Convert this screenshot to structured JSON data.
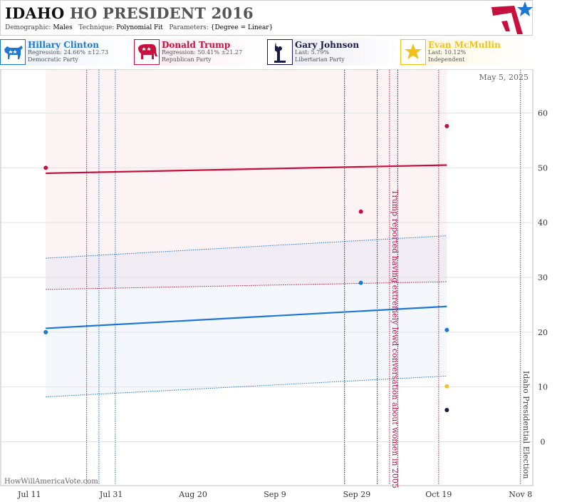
{
  "header": {
    "state": "IDAHO",
    "title_rest": "HO PRESIDENT 2016",
    "demographic_label": "Demographic:",
    "demographic_value": "Males",
    "technique_label": "Technique:",
    "technique_value": "Polynomial Fit",
    "parameters_label": "Parameters:",
    "parameters_value": "{Degree = Linear}"
  },
  "candidates": [
    {
      "name": "Hillary Clinton",
      "line1": "Regression: 24.66% ±12.73",
      "line2": "Democratic Party",
      "color": "#1f77d4",
      "icon": "donkey-icon"
    },
    {
      "name": "Donald Trump",
      "line1": "Regression: 50.41% ±21.27",
      "line2": "Republican Party",
      "color": "#c8103e",
      "icon": "elephant-icon"
    },
    {
      "name": "Gary Johnson",
      "line1": "Last: 5.79%",
      "line2": "Libertarian Party",
      "color": "#1a1a4a",
      "icon": "liberty-statue-icon"
    },
    {
      "name": "Evan McMullin",
      "line1": "Last: 10.12%",
      "line2": "Independent",
      "color": "#f2c21b",
      "icon": "star-icon"
    }
  ],
  "chart_data": {
    "type": "scatter",
    "date_stamp": "May 5, 2025",
    "watermark": "HowWillAmericaVote.com",
    "x_ticks": [
      "Jul 11",
      "Jul 31",
      "Aug 20",
      "Sep 9",
      "Sep 29",
      "Oct 19",
      "Nov 8"
    ],
    "x_range": [
      "2016-07-04",
      "2016-11-11"
    ],
    "y_ticks": [
      0,
      10,
      20,
      30,
      40,
      50,
      60
    ],
    "ylim": [
      -8,
      68
    ],
    "grid": true,
    "series": [
      {
        "name": "Hillary Clinton",
        "color": "#1f77d4",
        "trend": {
          "start": [
            "2016-07-15",
            20.7
          ],
          "end": [
            "2016-10-21",
            24.7
          ]
        },
        "band": {
          "start": [
            8.2,
            33.5
          ],
          "end": [
            12.0,
            37.6
          ]
        },
        "points": [
          [
            "2016-07-15",
            20.0
          ],
          [
            "2016-09-30",
            29.0
          ],
          [
            "2016-10-21",
            20.4
          ]
        ]
      },
      {
        "name": "Donald Trump",
        "color": "#c8103e",
        "trend": {
          "start": [
            "2016-07-15",
            49.0
          ],
          "end": [
            "2016-10-21",
            50.5
          ]
        },
        "band": {
          "start": [
            27.8,
            68.0
          ],
          "end": [
            29.2,
            68.0
          ]
        },
        "points": [
          [
            "2016-07-15",
            50.0
          ],
          [
            "2016-09-30",
            42.0
          ],
          [
            "2016-10-21",
            57.6
          ]
        ]
      },
      {
        "name": "Gary Johnson",
        "color": "#1a1a4a",
        "points": [
          [
            "2016-10-21",
            5.79
          ]
        ]
      },
      {
        "name": "Evan McMullin",
        "color": "#f2c21b",
        "points": [
          [
            "2016-10-21",
            10.12
          ]
        ]
      }
    ],
    "event_lines": [
      {
        "date": "2016-07-25",
        "color": "#c8103e"
      },
      {
        "date": "2016-07-28",
        "color": "#1f77d4"
      },
      {
        "date": "2016-08-01",
        "color": "#1f77d4"
      },
      {
        "date": "2016-09-26",
        "color": "#1a1a4a"
      },
      {
        "date": "2016-10-04",
        "color": "#1a1a4a"
      },
      {
        "date": "2016-10-09",
        "color": "#1a1a4a"
      },
      {
        "date": "2016-10-07",
        "color": "#c8103e"
      },
      {
        "date": "2016-10-19",
        "color": "#c8103e"
      },
      {
        "date": "2016-11-08",
        "color": "#555555"
      }
    ],
    "annotations": [
      {
        "text": "Trump reported having extremely lewd conversation about women in 2005",
        "date": "2016-10-07",
        "color": "#c8103e"
      },
      {
        "text": "Idaho Presidential Election",
        "date": "2016-11-08",
        "color": "#444444"
      }
    ]
  }
}
